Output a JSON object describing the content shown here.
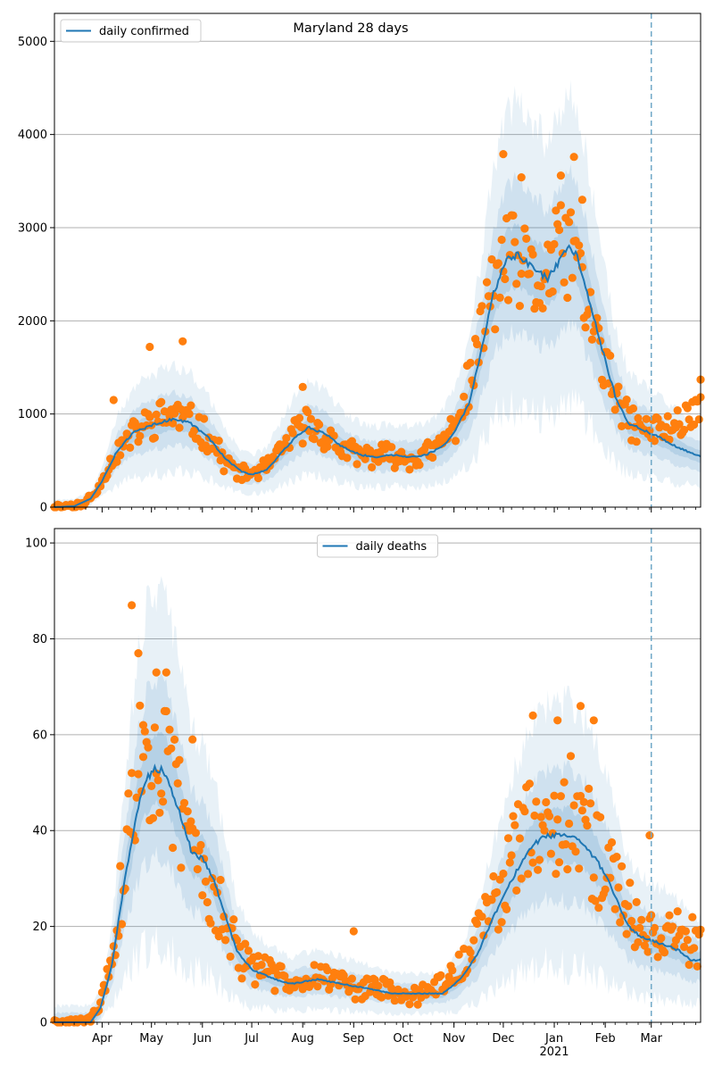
{
  "figure": {
    "background": "#ffffff"
  },
  "colors": {
    "line": "#1f77b4",
    "points": "#ff7f0e",
    "band": "#1f77b4",
    "vline": "#6fa8c7",
    "grid": "#b0b0b0"
  },
  "chart_data": [
    {
      "type": "line",
      "title": "Maryland 28 days",
      "legend": {
        "label": "daily confirmed",
        "placement": "top-left"
      },
      "xlabel": "",
      "ylabel": "",
      "xlim": [
        "2020-03-03",
        "2021-03-31"
      ],
      "ylim": [
        0,
        5300
      ],
      "yticks": [
        0,
        1000,
        2000,
        3000,
        4000,
        5000
      ],
      "grid": "y",
      "vline": "2021-03-01",
      "line_keypoints": [
        [
          "2020-03-03",
          0
        ],
        [
          "2020-03-15",
          10
        ],
        [
          "2020-03-25",
          90
        ],
        [
          "2020-04-01",
          280
        ],
        [
          "2020-04-10",
          600
        ],
        [
          "2020-04-20",
          800
        ],
        [
          "2020-05-01",
          880
        ],
        [
          "2020-05-15",
          950
        ],
        [
          "2020-05-25",
          900
        ],
        [
          "2020-06-05",
          740
        ],
        [
          "2020-06-15",
          520
        ],
        [
          "2020-06-25",
          380
        ],
        [
          "2020-07-01",
          350
        ],
        [
          "2020-07-10",
          400
        ],
        [
          "2020-07-20",
          600
        ],
        [
          "2020-07-28",
          760
        ],
        [
          "2020-08-05",
          860
        ],
        [
          "2020-08-15",
          780
        ],
        [
          "2020-08-25",
          650
        ],
        [
          "2020-09-05",
          560
        ],
        [
          "2020-09-15",
          540
        ],
        [
          "2020-09-25",
          560
        ],
        [
          "2020-10-05",
          540
        ],
        [
          "2020-10-15",
          560
        ],
        [
          "2020-10-25",
          650
        ],
        [
          "2020-11-01",
          800
        ],
        [
          "2020-11-10",
          1100
        ],
        [
          "2020-11-18",
          1700
        ],
        [
          "2020-11-25",
          2300
        ],
        [
          "2020-12-03",
          2650
        ],
        [
          "2020-12-10",
          2700
        ],
        [
          "2020-12-20",
          2550
        ],
        [
          "2020-12-28",
          2450
        ],
        [
          "2021-01-05",
          2650
        ],
        [
          "2021-01-10",
          2800
        ],
        [
          "2021-01-15",
          2700
        ],
        [
          "2021-01-22",
          2250
        ],
        [
          "2021-01-30",
          1700
        ],
        [
          "2021-02-07",
          1200
        ],
        [
          "2021-02-15",
          900
        ],
        [
          "2021-02-25",
          820
        ],
        [
          "2021-03-05",
          760
        ],
        [
          "2021-03-15",
          660
        ],
        [
          "2021-03-25",
          580
        ],
        [
          "2021-03-31",
          540
        ]
      ],
      "bands": [
        {
          "name": "inner",
          "opacity": 0.15,
          "spread": 0.12,
          "min": 20
        },
        {
          "name": "middle",
          "opacity": 0.12,
          "spread": 0.3,
          "min": 45
        },
        {
          "name": "outer",
          "opacity": 0.1,
          "spread": 0.6,
          "min": 80
        }
      ],
      "scatter_keypoints": [
        [
          "2020-03-03",
          5
        ],
        [
          "2020-03-20",
          30
        ],
        [
          "2020-03-28",
          150
        ],
        [
          "2020-04-05",
          450
        ],
        [
          "2020-04-15",
          700
        ],
        [
          "2020-04-25",
          850
        ],
        [
          "2020-05-05",
          950
        ],
        [
          "2020-05-15",
          1000
        ],
        [
          "2020-05-25",
          900
        ],
        [
          "2020-06-05",
          750
        ],
        [
          "2020-06-15",
          480
        ],
        [
          "2020-06-25",
          350
        ],
        [
          "2020-07-05",
          380
        ],
        [
          "2020-07-15",
          500
        ],
        [
          "2020-07-25",
          750
        ],
        [
          "2020-08-03",
          900
        ],
        [
          "2020-08-12",
          800
        ],
        [
          "2020-08-25",
          620
        ],
        [
          "2020-09-05",
          550
        ],
        [
          "2020-09-20",
          560
        ],
        [
          "2020-10-05",
          520
        ],
        [
          "2020-10-20",
          600
        ],
        [
          "2020-11-01",
          850
        ],
        [
          "2020-11-12",
          1400
        ],
        [
          "2020-11-22",
          2200
        ],
        [
          "2020-12-03",
          2650
        ],
        [
          "2020-12-12",
          2550
        ],
        [
          "2020-12-22",
          2350
        ],
        [
          "2021-01-03",
          2700
        ],
        [
          "2021-01-12",
          2800
        ],
        [
          "2021-01-22",
          2100
        ],
        [
          "2021-02-01",
          1500
        ],
        [
          "2021-02-10",
          1050
        ],
        [
          "2021-02-20",
          850
        ],
        [
          "2021-03-01",
          820
        ],
        [
          "2021-03-12",
          850
        ],
        [
          "2021-03-22",
          950
        ],
        [
          "2021-03-31",
          1150
        ]
      ],
      "scatter_noise": 0.2,
      "scatter_seed": 11,
      "scatter_outliers": [
        [
          "2020-04-08",
          1150
        ],
        [
          "2020-04-30",
          1720
        ],
        [
          "2020-05-20",
          1780
        ],
        [
          "2020-08-01",
          1290
        ],
        [
          "2020-12-01",
          3790
        ],
        [
          "2020-12-12",
          3540
        ],
        [
          "2021-01-05",
          3560
        ],
        [
          "2021-01-13",
          3760
        ],
        [
          "2021-01-18",
          3300
        ],
        [
          "2021-03-31",
          1370
        ]
      ]
    },
    {
      "type": "line",
      "title": "",
      "legend": {
        "label": "daily deaths",
        "placement": "top-center"
      },
      "xlabel": "",
      "ylabel": "",
      "xlim": [
        "2020-03-03",
        "2021-03-31"
      ],
      "ylim": [
        0,
        103
      ],
      "yticks": [
        0,
        20,
        40,
        60,
        80,
        100
      ],
      "grid": "y",
      "vline": "2021-03-01",
      "xticks": [
        {
          "date": "2020-04-01",
          "label": "Apr"
        },
        {
          "date": "2020-05-01",
          "label": "May"
        },
        {
          "date": "2020-06-01",
          "label": "Jun"
        },
        {
          "date": "2020-07-01",
          "label": "Jul"
        },
        {
          "date": "2020-08-01",
          "label": "Aug"
        },
        {
          "date": "2020-09-01",
          "label": "Sep"
        },
        {
          "date": "2020-10-01",
          "label": "Oct"
        },
        {
          "date": "2020-11-01",
          "label": "Nov"
        },
        {
          "date": "2020-12-01",
          "label": "Dec"
        },
        {
          "date": "2021-01-01",
          "label": "Jan"
        },
        {
          "date": "2021-02-01",
          "label": "Feb"
        },
        {
          "date": "2021-03-01",
          "label": "Mar"
        }
      ],
      "year_label": {
        "date": "2021-01-01",
        "text": "2021"
      },
      "line_keypoints": [
        [
          "2020-03-03",
          0
        ],
        [
          "2020-03-25",
          0
        ],
        [
          "2020-03-31",
          3
        ],
        [
          "2020-04-07",
          12
        ],
        [
          "2020-04-14",
          28
        ],
        [
          "2020-04-22",
          44
        ],
        [
          "2020-04-28",
          51
        ],
        [
          "2020-05-04",
          53
        ],
        [
          "2020-05-10",
          52
        ],
        [
          "2020-05-18",
          44
        ],
        [
          "2020-05-25",
          36
        ],
        [
          "2020-06-01",
          34
        ],
        [
          "2020-06-08",
          30
        ],
        [
          "2020-06-15",
          22
        ],
        [
          "2020-06-22",
          15
        ],
        [
          "2020-07-01",
          11
        ],
        [
          "2020-07-15",
          9
        ],
        [
          "2020-07-25",
          8
        ],
        [
          "2020-08-10",
          9
        ],
        [
          "2020-08-25",
          8
        ],
        [
          "2020-09-10",
          7
        ],
        [
          "2020-09-25",
          6
        ],
        [
          "2020-10-10",
          6
        ],
        [
          "2020-10-25",
          6
        ],
        [
          "2020-11-05",
          9
        ],
        [
          "2020-11-15",
          14
        ],
        [
          "2020-11-25",
          22
        ],
        [
          "2020-12-05",
          29
        ],
        [
          "2020-12-15",
          35
        ],
        [
          "2020-12-25",
          39
        ],
        [
          "2021-01-01",
          39
        ],
        [
          "2021-01-10",
          39
        ],
        [
          "2021-01-20",
          37
        ],
        [
          "2021-01-28",
          33
        ],
        [
          "2021-02-05",
          28
        ],
        [
          "2021-02-15",
          20
        ],
        [
          "2021-02-22",
          18
        ],
        [
          "2021-03-01",
          17
        ],
        [
          "2021-03-10",
          16
        ],
        [
          "2021-03-18",
          15
        ],
        [
          "2021-03-25",
          13
        ],
        [
          "2021-03-31",
          13
        ]
      ],
      "bands": [
        {
          "name": "inner",
          "opacity": 0.15,
          "spread": 0.14,
          "min": 1
        },
        {
          "name": "middle",
          "opacity": 0.12,
          "spread": 0.35,
          "min": 2
        },
        {
          "name": "outer",
          "opacity": 0.1,
          "spread": 0.7,
          "min": 3.5
        }
      ],
      "scatter_keypoints": [
        [
          "2020-03-03",
          0
        ],
        [
          "2020-03-25",
          0.5
        ],
        [
          "2020-03-31",
          4
        ],
        [
          "2020-04-07",
          13
        ],
        [
          "2020-04-14",
          30
        ],
        [
          "2020-04-22",
          50
        ],
        [
          "2020-04-28",
          58
        ],
        [
          "2020-05-04",
          55
        ],
        [
          "2020-05-12",
          50
        ],
        [
          "2020-05-20",
          42
        ],
        [
          "2020-05-28",
          35
        ],
        [
          "2020-06-05",
          30
        ],
        [
          "2020-06-15",
          20
        ],
        [
          "2020-06-25",
          13
        ],
        [
          "2020-07-05",
          11
        ],
        [
          "2020-07-20",
          9
        ],
        [
          "2020-08-05",
          10
        ],
        [
          "2020-08-20",
          9
        ],
        [
          "2020-09-05",
          7
        ],
        [
          "2020-09-20",
          7
        ],
        [
          "2020-10-05",
          5
        ],
        [
          "2020-10-20",
          7
        ],
        [
          "2020-11-01",
          10
        ],
        [
          "2020-11-12",
          15
        ],
        [
          "2020-11-22",
          23
        ],
        [
          "2020-12-01",
          30
        ],
        [
          "2020-12-12",
          38
        ],
        [
          "2020-12-22",
          42
        ],
        [
          "2021-01-01",
          42
        ],
        [
          "2021-01-12",
          44
        ],
        [
          "2021-01-22",
          38
        ],
        [
          "2021-02-01",
          32
        ],
        [
          "2021-02-12",
          25
        ],
        [
          "2021-02-22",
          20
        ],
        [
          "2021-03-05",
          18
        ],
        [
          "2021-03-15",
          20
        ],
        [
          "2021-03-25",
          17
        ],
        [
          "2021-03-31",
          15
        ]
      ],
      "scatter_noise": 0.3,
      "scatter_seed": 29,
      "scatter_outliers": [
        [
          "2020-04-19",
          87
        ],
        [
          "2020-04-23",
          77
        ],
        [
          "2020-05-04",
          73
        ],
        [
          "2020-05-10",
          73
        ],
        [
          "2020-04-26",
          62
        ],
        [
          "2020-05-26",
          59
        ],
        [
          "2020-09-01",
          19
        ],
        [
          "2020-12-19",
          64
        ],
        [
          "2021-01-17",
          66
        ],
        [
          "2021-01-25",
          63
        ],
        [
          "2021-01-03",
          63
        ],
        [
          "2021-02-28",
          39
        ]
      ]
    }
  ]
}
